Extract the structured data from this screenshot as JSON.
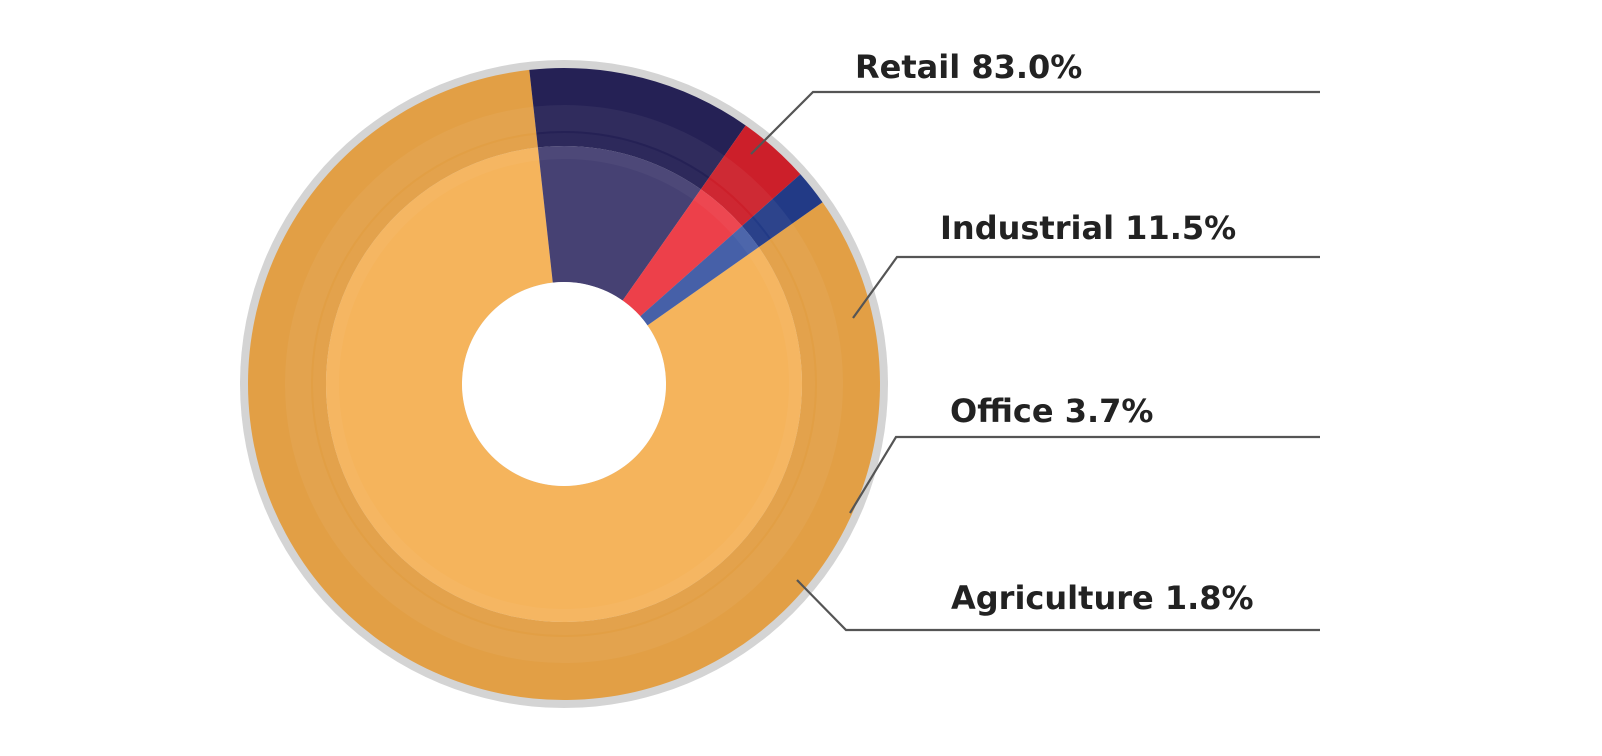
{
  "chart_data": {
    "type": "pie",
    "style": "donut",
    "start_angle_deg": 54.9,
    "categories": [
      "Retail",
      "Industrial",
      "Office",
      "Agriculture"
    ],
    "values": [
      83.0,
      11.5,
      3.7,
      1.8
    ],
    "labels": [
      "Retail 83.0%",
      "Industrial 11.5%",
      "Office 3.7%",
      "Agriculture 1.8%"
    ],
    "colors": {
      "Retail": {
        "inner": "#f5b45c",
        "outer": "#e29f45"
      },
      "Industrial": {
        "inner": "#464173",
        "outer": "#252155"
      },
      "Office": {
        "inner": "#ed404a",
        "outer": "#cc1f2a"
      },
      "Agriculture": {
        "inner": "#4660a8",
        "outer": "#223a86"
      }
    },
    "rim_color": "#d4d4d4",
    "legend": "callouts-right"
  }
}
